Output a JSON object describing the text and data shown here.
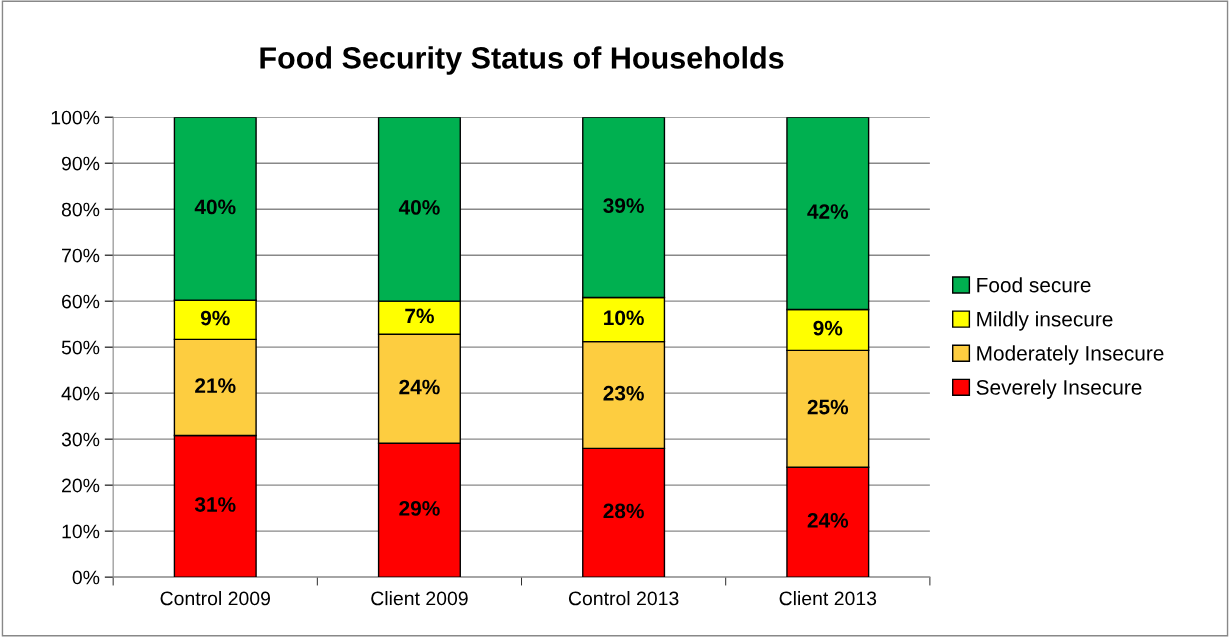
{
  "chart_data": {
    "type": "bar",
    "stacked": true,
    "title": "Food Security Status of Households",
    "categories": [
      "Control 2009",
      "Client 2009",
      "Control 2013",
      "Client 2013"
    ],
    "series": [
      {
        "name": "Severely Insecure",
        "color": "#ff0000",
        "values": [
          30.8,
          29.1,
          28.0,
          23.9
        ],
        "value_labels": [
          "31%",
          "29%",
          "28%",
          "24%"
        ]
      },
      {
        "name": "Moderately Insecure",
        "color": "#fdcd40",
        "values": [
          20.9,
          23.7,
          23.2,
          25.4
        ],
        "value_labels": [
          "21%",
          "24%",
          "23%",
          "25%"
        ]
      },
      {
        "name": "Mildly insecure",
        "color": "#ffff00",
        "values": [
          8.5,
          7.2,
          9.6,
          8.9
        ],
        "value_labels": [
          "9%",
          "7%",
          "10%",
          "9%"
        ]
      },
      {
        "name": "Food secure",
        "color": "#00b050",
        "values": [
          39.8,
          40.0,
          39.2,
          41.8
        ],
        "value_labels": [
          "40%",
          "40%",
          "39%",
          "42%"
        ]
      }
    ],
    "ylim": [
      0,
      100
    ],
    "yticks": [
      {
        "value": 0,
        "label": "0%"
      },
      {
        "value": 10,
        "label": "10%"
      },
      {
        "value": 20,
        "label": "20%"
      },
      {
        "value": 30,
        "label": "30%"
      },
      {
        "value": 40,
        "label": "40%"
      },
      {
        "value": 50,
        "label": "50%"
      },
      {
        "value": 60,
        "label": "60%"
      },
      {
        "value": 70,
        "label": "70%"
      },
      {
        "value": 80,
        "label": "80%"
      },
      {
        "value": 90,
        "label": "90%"
      },
      {
        "value": 100,
        "label": "100%"
      }
    ],
    "grid": "y",
    "legend": "right"
  }
}
